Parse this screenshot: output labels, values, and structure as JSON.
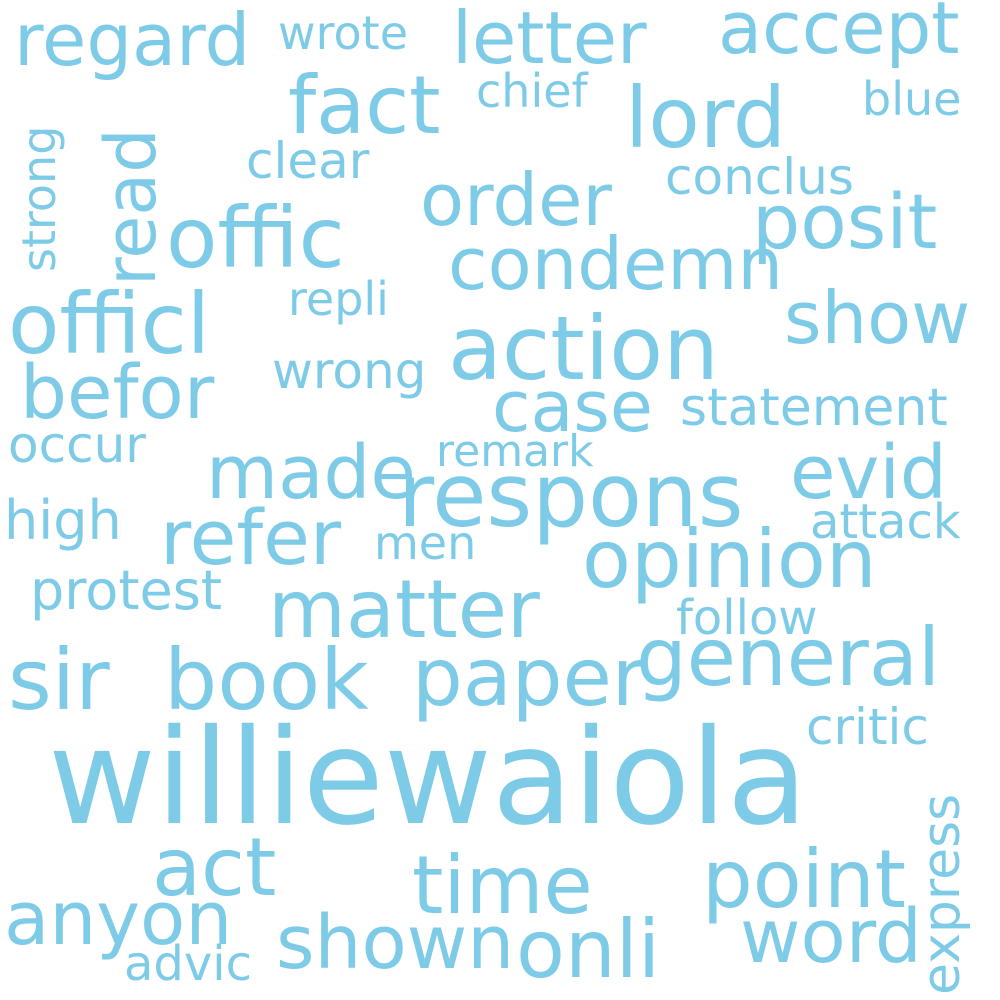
{
  "cloud": {
    "color": "#7ecbe8",
    "words": [
      "williewaiola",
      "respons",
      "action",
      "opinion",
      "matter",
      "officl",
      "offic",
      "lord",
      "fact",
      "letter",
      "accept",
      "regard",
      "wrote",
      "chief",
      "blue",
      "read",
      "strong",
      "clear",
      "conclus",
      "order",
      "posit",
      "condemn",
      "repli",
      "show",
      "wrong",
      "befor",
      "case",
      "statement",
      "occur",
      "remark",
      "made",
      "evid",
      "high",
      "refer",
      "men",
      "attack",
      "protest",
      "follow",
      "sir",
      "book",
      "paper",
      "general",
      "critic",
      "express",
      "act",
      "time",
      "point",
      "anyon",
      "shown",
      "onli",
      "word",
      "advic"
    ]
  }
}
